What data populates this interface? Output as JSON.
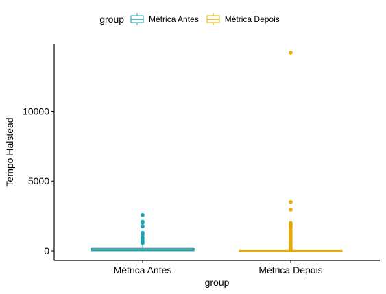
{
  "chart_data": {
    "type": "boxplot",
    "title": "",
    "xlabel": "group",
    "ylabel": "Tempo Halstead",
    "ylim": [
      0,
      14200
    ],
    "y_ticks": [
      0,
      5000,
      10000
    ],
    "y_tick_labels": [
      "0",
      "5000",
      "10000"
    ],
    "categories": [
      "Métrica Antes",
      "Métrica Depois"
    ],
    "grid": false,
    "legend": {
      "title": "group",
      "position": "top",
      "entries": [
        "Métrica Antes",
        "Métrica Depois"
      ]
    },
    "series": [
      {
        "name": "Métrica Antes",
        "color": "#1aa3b0",
        "q1": 10,
        "median": 40,
        "q3": 180,
        "whisker_low": 0,
        "whisker_high": 400,
        "outliers": [
          2570,
          2100,
          2000,
          1750,
          1300,
          1250,
          1150,
          950,
          850,
          700,
          600,
          550
        ]
      },
      {
        "name": "Métrica Depois",
        "color": "#e6ac00",
        "q1": 0,
        "median": 5,
        "q3": 20,
        "whisker_low": 0,
        "whisker_high": 40,
        "outliers": [
          14200,
          3500,
          2950,
          2000,
          1900,
          1750,
          1600,
          1400,
          1300,
          1200,
          1050,
          900,
          750,
          600,
          450,
          350,
          250,
          150,
          100
        ]
      }
    ]
  }
}
